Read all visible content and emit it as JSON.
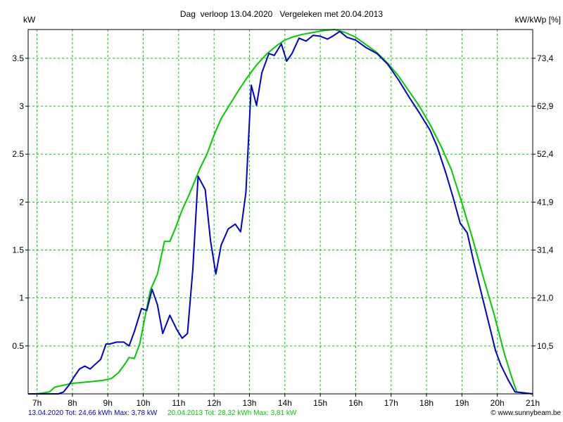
{
  "chart_data": {
    "type": "line",
    "title": "Dag  verloop 13.04.2020   Vergeleken met 20.04.2013",
    "ylabel_left": "kW",
    "ylabel_right": "kW/kWp [%]",
    "xlim": [
      6.75,
      21.0
    ],
    "ylim": [
      0,
      3.8
    ],
    "x_ticks": [
      7,
      8,
      9,
      10,
      11,
      12,
      13,
      14,
      15,
      16,
      17,
      18,
      19,
      20,
      21
    ],
    "x_tick_labels": [
      "7h",
      "8h",
      "9h",
      "10h",
      "11h",
      "12h",
      "13h",
      "14h",
      "15h",
      "16h",
      "17h",
      "18h",
      "19h",
      "20h",
      "21h"
    ],
    "y_ticks_left": [
      0.5,
      1,
      1.5,
      2,
      2.5,
      3,
      3.5
    ],
    "y_tick_labels_left": [
      "0.5",
      "1",
      "1.5",
      "2",
      "2.5",
      "3",
      "3.5"
    ],
    "y_ticks_right": [
      0.5,
      1,
      1.5,
      2,
      2.5,
      3,
      3.5
    ],
    "y_tick_labels_right": [
      "10,5",
      "21,0",
      "31,4",
      "41,9",
      "52,4",
      "62,9",
      "73,4"
    ],
    "grid": true,
    "series": [
      {
        "name": "13.04.2020 Tot: 24,66 kWh Max: 3,78 kW",
        "color": "#0000cc",
        "x": [
          6.75,
          7.0,
          7.6,
          7.75,
          7.9,
          8.05,
          8.2,
          8.35,
          8.5,
          8.65,
          8.8,
          8.95,
          9.05,
          9.25,
          9.45,
          9.6,
          9.75,
          9.95,
          10.1,
          10.25,
          10.4,
          10.55,
          10.75,
          10.95,
          11.1,
          11.25,
          11.4,
          11.55,
          11.75,
          11.9,
          12.05,
          12.2,
          12.4,
          12.6,
          12.75,
          12.9,
          13.05,
          13.2,
          13.35,
          13.55,
          13.7,
          13.9,
          14.05,
          14.2,
          14.4,
          14.6,
          14.8,
          15.0,
          15.2,
          15.35,
          15.55,
          15.75,
          16.0,
          16.3,
          16.6,
          16.9,
          17.2,
          17.5,
          17.8,
          18.1,
          18.3,
          18.55,
          18.75,
          18.95,
          19.15,
          19.35,
          19.55,
          19.75,
          19.95,
          20.1,
          20.3,
          20.5,
          21.0
        ],
        "y": [
          0.0,
          0.0,
          0.0,
          0.02,
          0.09,
          0.18,
          0.26,
          0.29,
          0.26,
          0.31,
          0.36,
          0.52,
          0.52,
          0.54,
          0.54,
          0.5,
          0.65,
          0.89,
          0.87,
          1.09,
          0.93,
          0.63,
          0.82,
          0.67,
          0.58,
          0.63,
          1.3,
          2.27,
          2.13,
          1.6,
          1.25,
          1.55,
          1.72,
          1.77,
          1.69,
          2.1,
          3.22,
          3.01,
          3.35,
          3.55,
          3.53,
          3.65,
          3.47,
          3.55,
          3.71,
          3.68,
          3.74,
          3.73,
          3.7,
          3.73,
          3.78,
          3.72,
          3.69,
          3.61,
          3.55,
          3.44,
          3.28,
          3.1,
          2.93,
          2.75,
          2.58,
          2.3,
          2.05,
          1.78,
          1.68,
          1.35,
          1.05,
          0.75,
          0.45,
          0.3,
          0.15,
          0.02,
          0.0
        ]
      },
      {
        "name": "20.04.2013 Tot: 28,32 kWh Max: 3,81 kW",
        "color": "#00cc00",
        "x": [
          6.75,
          7.0,
          7.35,
          7.5,
          7.75,
          8.0,
          8.3,
          8.6,
          8.85,
          9.1,
          9.3,
          9.5,
          9.6,
          9.75,
          9.9,
          10.05,
          10.2,
          10.4,
          10.6,
          10.75,
          10.9,
          11.1,
          11.3,
          11.6,
          11.8,
          12.0,
          12.2,
          12.5,
          12.7,
          12.9,
          13.2,
          13.5,
          13.8,
          14.0,
          14.2,
          14.5,
          14.8,
          15.1,
          15.4,
          15.7,
          16.0,
          16.3,
          16.6,
          16.9,
          17.2,
          17.5,
          17.8,
          18.1,
          18.4,
          18.7,
          19.0,
          19.3,
          19.6,
          19.9,
          20.2,
          20.4,
          20.55,
          21.0
        ],
        "y": [
          0.0,
          0.0,
          0.02,
          0.07,
          0.09,
          0.11,
          0.12,
          0.13,
          0.14,
          0.16,
          0.22,
          0.32,
          0.38,
          0.37,
          0.52,
          0.8,
          1.08,
          1.25,
          1.59,
          1.59,
          1.72,
          1.92,
          2.08,
          2.35,
          2.5,
          2.7,
          2.87,
          3.05,
          3.17,
          3.28,
          3.43,
          3.55,
          3.64,
          3.69,
          3.72,
          3.75,
          3.77,
          3.79,
          3.8,
          3.77,
          3.72,
          3.64,
          3.56,
          3.45,
          3.32,
          3.16,
          3.0,
          2.81,
          2.59,
          2.34,
          1.99,
          1.62,
          1.22,
          0.84,
          0.42,
          0.18,
          0.02,
          0.0
        ]
      }
    ]
  },
  "footer": {
    "series1_label": "13.04.2020 Tot: 24,66 kWh Max: 3,78 kW",
    "series2_label": "20.04.2013 Tot: 28,32 kWh Max: 3,81 kW",
    "copyright": "© www.sunnybeam.be",
    "series1_color": "#0000cc",
    "series2_color": "#00cc00"
  }
}
